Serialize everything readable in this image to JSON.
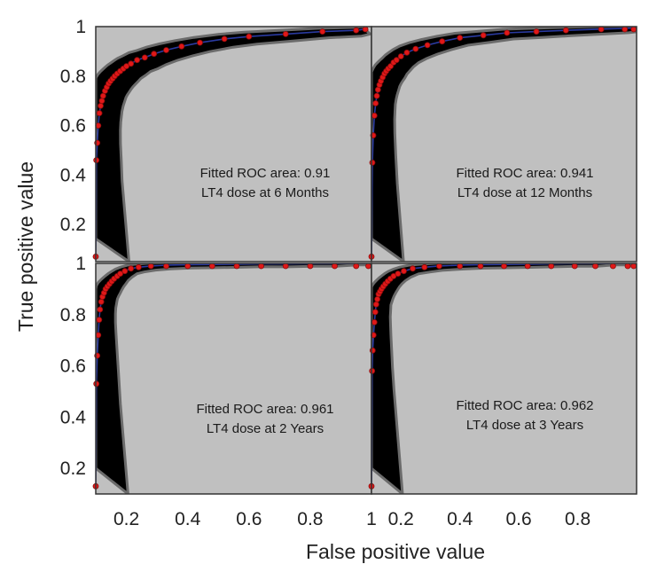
{
  "figure": {
    "xlabel": "False positive value",
    "ylabel": "True positive value",
    "colors": {
      "panel_background": "#c0c0c0",
      "confidence_band": "#000000",
      "band_edge": "#6b6b6b",
      "fitted_curve": "#2a3aa0",
      "points": "#e01818",
      "point_edge": "#8a0c0c"
    }
  },
  "chart_data": [
    {
      "type": "line",
      "panel": "top-left",
      "annotation": [
        "Fitted ROC area: 0.91",
        "LT4 dose at 6 Months"
      ],
      "auc": 0.91,
      "xlim": [
        0.1,
        1
      ],
      "ylim": [
        0.05,
        1
      ],
      "y_ticks": [
        {
          "value": 1,
          "label": "1"
        },
        {
          "value": 0.8,
          "label": "0.8"
        },
        {
          "value": 0.6,
          "label": "0.6"
        },
        {
          "value": 0.4,
          "label": "0.4"
        },
        {
          "value": 0.2,
          "label": "0.2"
        }
      ],
      "x_ticks": [],
      "points_x": [
        0.1,
        0.102,
        0.105,
        0.108,
        0.112,
        0.116,
        0.12,
        0.124,
        0.13,
        0.136,
        0.142,
        0.148,
        0.155,
        0.162,
        0.17,
        0.18,
        0.19,
        0.2,
        0.215,
        0.235,
        0.26,
        0.29,
        0.33,
        0.38,
        0.44,
        0.52,
        0.6,
        0.72,
        0.84,
        0.95,
        0.98
      ],
      "points_y": [
        0.07,
        0.46,
        0.53,
        0.6,
        0.65,
        0.68,
        0.7,
        0.72,
        0.74,
        0.755,
        0.77,
        0.78,
        0.79,
        0.8,
        0.81,
        0.82,
        0.83,
        0.84,
        0.85,
        0.865,
        0.875,
        0.89,
        0.905,
        0.92,
        0.935,
        0.95,
        0.96,
        0.97,
        0.98,
        0.985,
        0.99
      ]
    },
    {
      "type": "line",
      "panel": "top-right",
      "annotation": [
        "Fitted ROC area: 0.941",
        "LT4 dose at 12 Months"
      ],
      "auc": 0.941,
      "xlim": [
        0.1,
        1
      ],
      "ylim": [
        0.05,
        1
      ],
      "y_ticks": [],
      "x_ticks": [],
      "points_x": [
        0.1,
        0.103,
        0.106,
        0.11,
        0.114,
        0.118,
        0.122,
        0.127,
        0.132,
        0.138,
        0.144,
        0.15,
        0.157,
        0.165,
        0.175,
        0.185,
        0.2,
        0.22,
        0.25,
        0.29,
        0.34,
        0.4,
        0.48,
        0.56,
        0.66,
        0.76,
        0.88,
        0.96,
        0.99
      ],
      "points_y": [
        0.07,
        0.45,
        0.56,
        0.64,
        0.69,
        0.72,
        0.745,
        0.765,
        0.78,
        0.795,
        0.81,
        0.82,
        0.83,
        0.84,
        0.855,
        0.865,
        0.88,
        0.895,
        0.91,
        0.925,
        0.94,
        0.955,
        0.965,
        0.975,
        0.98,
        0.985,
        0.99,
        0.993,
        0.995
      ]
    },
    {
      "type": "line",
      "panel": "bottom-left",
      "annotation": [
        "Fitted ROC area: 0.961",
        "LT4 dose at 2 Years"
      ],
      "auc": 0.961,
      "xlim": [
        0.1,
        1
      ],
      "ylim": [
        0.1,
        1
      ],
      "y_ticks": [
        {
          "value": 1,
          "label": "1"
        },
        {
          "value": 0.8,
          "label": "0.8"
        },
        {
          "value": 0.6,
          "label": "0.6"
        },
        {
          "value": 0.4,
          "label": "0.4"
        },
        {
          "value": 0.2,
          "label": "0.2"
        }
      ],
      "x_ticks": [
        {
          "value": 0.2,
          "label": "0.2"
        },
        {
          "value": 0.4,
          "label": "0.4"
        },
        {
          "value": 0.6,
          "label": "0.6"
        },
        {
          "value": 0.8,
          "label": "0.8"
        },
        {
          "value": 1,
          "label": "1"
        }
      ],
      "points_x": [
        0.1,
        0.102,
        0.105,
        0.108,
        0.111,
        0.114,
        0.118,
        0.122,
        0.127,
        0.132,
        0.138,
        0.145,
        0.152,
        0.16,
        0.17,
        0.18,
        0.195,
        0.215,
        0.24,
        0.28,
        0.33,
        0.4,
        0.48,
        0.56,
        0.64,
        0.72,
        0.8,
        0.88,
        0.95,
        0.99
      ],
      "points_y": [
        0.13,
        0.53,
        0.64,
        0.72,
        0.78,
        0.82,
        0.85,
        0.87,
        0.885,
        0.9,
        0.91,
        0.92,
        0.93,
        0.94,
        0.95,
        0.96,
        0.97,
        0.98,
        0.985,
        0.99,
        0.993,
        0.995,
        0.996,
        0.997,
        0.998,
        0.998,
        0.999,
        0.999,
        1,
        1
      ]
    },
    {
      "type": "line",
      "panel": "bottom-right",
      "annotation": [
        "Fitted ROC area: 0.962",
        "LT4 dose at 3 Years"
      ],
      "auc": 0.962,
      "xlim": [
        0.1,
        1
      ],
      "ylim": [
        0.1,
        1
      ],
      "y_ticks": [],
      "x_ticks": [
        {
          "value": 0.2,
          "label": "0.2"
        },
        {
          "value": 0.4,
          "label": "0.4"
        },
        {
          "value": 0.6,
          "label": "0.6"
        },
        {
          "value": 0.8,
          "label": "0.8"
        }
      ],
      "points_x": [
        0.1,
        0.102,
        0.104,
        0.107,
        0.11,
        0.113,
        0.116,
        0.12,
        0.124,
        0.129,
        0.134,
        0.14,
        0.147,
        0.155,
        0.164,
        0.175,
        0.19,
        0.21,
        0.24,
        0.28,
        0.33,
        0.4,
        0.47,
        0.55,
        0.63,
        0.71,
        0.79,
        0.86,
        0.92,
        0.97,
        0.99
      ],
      "points_y": [
        0.13,
        0.58,
        0.66,
        0.72,
        0.77,
        0.81,
        0.84,
        0.86,
        0.88,
        0.89,
        0.9,
        0.91,
        0.92,
        0.93,
        0.94,
        0.95,
        0.96,
        0.97,
        0.98,
        0.985,
        0.99,
        0.993,
        0.995,
        0.996,
        0.997,
        0.998,
        0.999,
        0.999,
        1,
        1,
        1
      ]
    }
  ]
}
